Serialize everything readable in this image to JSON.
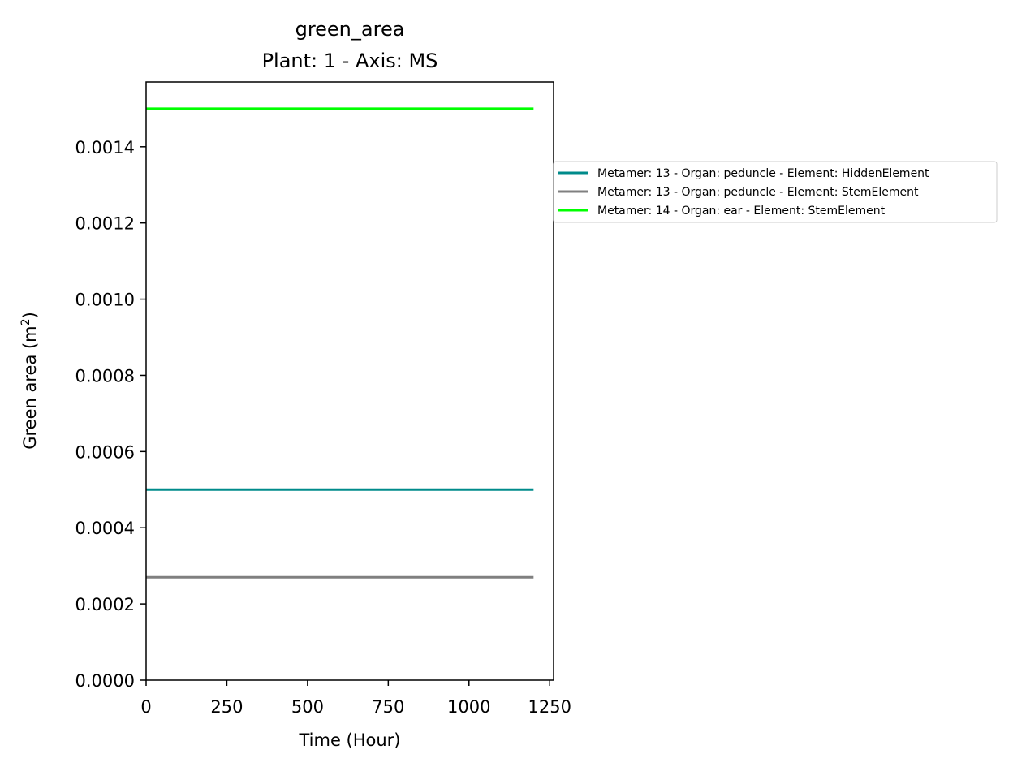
{
  "chart_data": {
    "type": "line",
    "title": "green_area",
    "subtitle": "Plant: 1 - Axis: MS",
    "xlabel": "Time (Hour)",
    "ylabel_main": "Green area (m",
    "ylabel_sup": "2",
    "ylabel_close": ")",
    "xlim": [
      0,
      1262
    ],
    "ylim": [
      0,
      0.00157
    ],
    "xticks": [
      0,
      250,
      500,
      750,
      1000,
      1250
    ],
    "xtick_labels": [
      "0",
      "250",
      "500",
      "750",
      "1000",
      "1250"
    ],
    "yticks": [
      0,
      0.0002,
      0.0004,
      0.0006,
      0.0008,
      0.001,
      0.0012,
      0.0014
    ],
    "ytick_labels": [
      "0.0000",
      "0.0002",
      "0.0004",
      "0.0006",
      "0.0008",
      "0.0010",
      "0.0012",
      "0.0014"
    ],
    "grid": false,
    "legend_position": "outside-right",
    "series": [
      {
        "name": "Metamer: 13 - Organ: peduncle - Element: HiddenElement",
        "color": "#008b8b",
        "x": [
          0,
          1200
        ],
        "y": [
          0.0005,
          0.0005
        ]
      },
      {
        "name": "Metamer: 13 - Organ: peduncle - Element: StemElement",
        "color": "#808080",
        "x": [
          0,
          1200
        ],
        "y": [
          0.00027,
          0.00027
        ]
      },
      {
        "name": "Metamer: 14 - Organ: ear - Element: StemElement",
        "color": "#00ff00",
        "x": [
          0,
          1200
        ],
        "y": [
          0.0015,
          0.0015
        ]
      }
    ]
  }
}
